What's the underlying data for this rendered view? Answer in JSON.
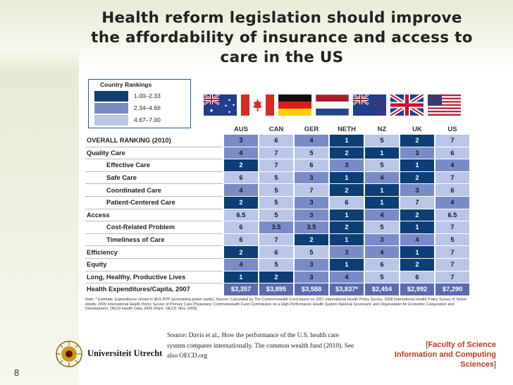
{
  "slide": {
    "title_lines": [
      "Health reform legislation should improve",
      "the affordability of insurance and access to",
      "care in the US"
    ],
    "page_number": "8"
  },
  "legend": {
    "title": "Country Rankings",
    "items": [
      {
        "label": "1.00–2.33",
        "color": "#0b3f76"
      },
      {
        "label": "2.34–4.66",
        "color": "#7a8cc7"
      },
      {
        "label": "4.67–7.00",
        "color": "#b9c6e8"
      }
    ]
  },
  "table": {
    "columns": [
      "AUS",
      "CAN",
      "GER",
      "NETH",
      "NZ",
      "UK",
      "US"
    ],
    "flag_names": [
      "australia-flag-icon",
      "canada-flag-icon",
      "germany-flag-icon",
      "netherlands-flag-icon",
      "new-zealand-flag-icon",
      "uk-flag-icon",
      "us-flag-icon"
    ],
    "rows": [
      {
        "label": "OVERALL RANKING (2010)",
        "level": 1,
        "values": [
          "3",
          "6",
          "4",
          "1",
          "5",
          "2",
          "7"
        ],
        "classes": [
          2,
          3,
          2,
          1,
          3,
          1,
          3
        ]
      },
      {
        "label": "Quality Care",
        "level": 1,
        "values": [
          "4",
          "7",
          "5",
          "2",
          "1",
          "3",
          "6"
        ],
        "classes": [
          2,
          3,
          3,
          1,
          1,
          2,
          3
        ]
      },
      {
        "label": "Effective Care",
        "level": 2,
        "values": [
          "2",
          "7",
          "6",
          "3",
          "5",
          "1",
          "4"
        ],
        "classes": [
          1,
          3,
          3,
          2,
          3,
          1,
          2
        ]
      },
      {
        "label": "Safe Care",
        "level": 2,
        "values": [
          "6",
          "5",
          "3",
          "1",
          "4",
          "2",
          "7"
        ],
        "classes": [
          3,
          3,
          2,
          1,
          2,
          1,
          3
        ]
      },
      {
        "label": "Coordinated Care",
        "level": 2,
        "values": [
          "4",
          "5",
          "7",
          "2",
          "1",
          "3",
          "6"
        ],
        "classes": [
          2,
          3,
          3,
          1,
          1,
          2,
          3
        ]
      },
      {
        "label": "Patient-Centered Care",
        "level": 2,
        "values": [
          "2",
          "5",
          "3",
          "6",
          "1",
          "7",
          "4"
        ],
        "classes": [
          1,
          3,
          2,
          3,
          1,
          3,
          2
        ]
      },
      {
        "label": "Access",
        "level": 1,
        "values": [
          "6.5",
          "5",
          "3",
          "1",
          "4",
          "2",
          "6.5"
        ],
        "classes": [
          3,
          3,
          2,
          1,
          2,
          1,
          3
        ]
      },
      {
        "label": "Cost-Related Problem",
        "level": 2,
        "values": [
          "6",
          "3.5",
          "3.5",
          "2",
          "5",
          "1",
          "7"
        ],
        "classes": [
          3,
          2,
          2,
          1,
          3,
          1,
          3
        ]
      },
      {
        "label": "Timeliness of Care",
        "level": 2,
        "values": [
          "6",
          "7",
          "2",
          "1",
          "3",
          "4",
          "5"
        ],
        "classes": [
          3,
          3,
          1,
          1,
          2,
          2,
          3
        ]
      },
      {
        "label": "Efficiency",
        "level": 1,
        "values": [
          "2",
          "6",
          "5",
          "3",
          "4",
          "1",
          "7"
        ],
        "classes": [
          1,
          3,
          3,
          2,
          2,
          1,
          3
        ]
      },
      {
        "label": "Equity",
        "level": 1,
        "values": [
          "4",
          "5",
          "3",
          "1",
          "6",
          "2",
          "7"
        ],
        "classes": [
          2,
          3,
          2,
          1,
          3,
          1,
          3
        ]
      },
      {
        "label": "Long, Healthy, Productive Lives",
        "level": 1,
        "values": [
          "1",
          "2",
          "3",
          "4",
          "5",
          "6",
          "7"
        ],
        "classes": [
          1,
          1,
          2,
          2,
          3,
          3,
          3
        ]
      },
      {
        "label": "Health Expenditures/Capita, 2007",
        "level": 1,
        "values": [
          "$3,357",
          "$3,895",
          "$3,588",
          "$3,837*",
          "$2,454",
          "$2,992",
          "$7,290"
        ],
        "classes": [
          0,
          0,
          0,
          0,
          0,
          0,
          0
        ],
        "expenditure": true
      }
    ]
  },
  "notes": "Note: * Estimate. Expenditures shown in $US PPP (purchasing power parity). Source: Calculated by The Commonwealth Fund based on 2007 International Health Policy Survey; 2008 International Health Policy Survey of Sicker Adults; 2009 International Health Policy Survey of Primary Care Physicians; Commonwealth Fund Commission on a High Performance Health System National Scorecard; and Organization for Economic Cooperation and Development, OECD Health Data, 2009 (Paris: OECD, Nov. 2009).",
  "footer": {
    "university": "Universiteit Utrecht",
    "source_text": "Source: Davis et al., How the performance of the U.S. health care system compares internationally. The common wealth fund (2010). See also OECD.org",
    "faculty_line1_open": "[",
    "faculty_line1": "Faculty of Science",
    "faculty_line2": "Information and Computing Sciences",
    "faculty_line2_close": "]"
  }
}
